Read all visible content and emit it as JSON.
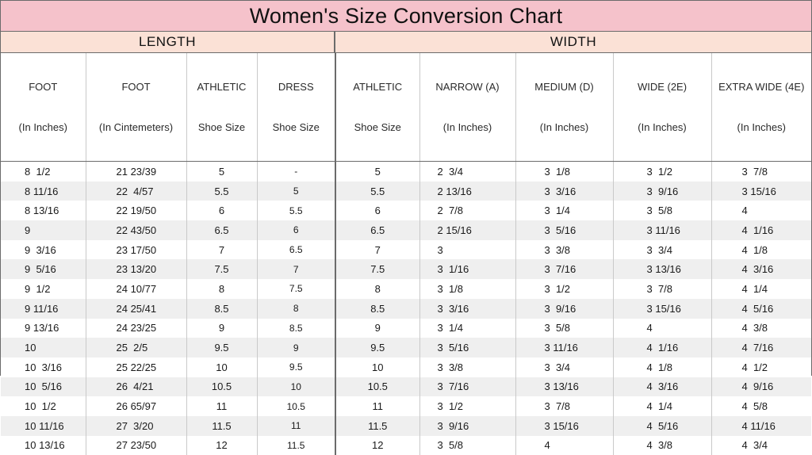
{
  "title": "Women's Size Conversion Chart",
  "groups": {
    "length": "LENGTH",
    "width": "WIDTH"
  },
  "headers": [
    {
      "line1": "FOOT",
      "line2": "(In Inches)"
    },
    {
      "line1": "FOOT",
      "line2": "(In Cintemeters)"
    },
    {
      "line1": "ATHLETIC",
      "line2": "Shoe Size"
    },
    {
      "line1": "DRESS",
      "line2": "Shoe Size"
    },
    {
      "line1": "ATHLETIC",
      "line2": "Shoe Size"
    },
    {
      "line1": "NARROW (A)",
      "line2": "(In Inches)"
    },
    {
      "line1": "MEDIUM (D)",
      "line2": "(In Inches)"
    },
    {
      "line1": "WIDE (2E)",
      "line2": "(In Inches)"
    },
    {
      "line1": "EXTRA WIDE (4E)",
      "line2": "(In Inches)"
    }
  ],
  "rows": [
    [
      "8  1/2",
      "21 23/39",
      "5",
      "-",
      "5",
      "2  3/4",
      "3  1/8",
      "3  1/2",
      "3  7/8"
    ],
    [
      "8 11/16",
      "22  4/57",
      "5.5",
      "5",
      "5.5",
      "2 13/16",
      "3  3/16",
      "3  9/16",
      "3 15/16"
    ],
    [
      "8 13/16",
      "22 19/50",
      "6",
      "5.5",
      "6",
      "2  7/8",
      "3  1/4",
      "3  5/8",
      "4"
    ],
    [
      "9",
      "22 43/50",
      "6.5",
      "6",
      "6.5",
      "2 15/16",
      "3  5/16",
      "3 11/16",
      "4  1/16"
    ],
    [
      "9  3/16",
      "23 17/50",
      "7",
      "6.5",
      "7",
      "3",
      "3  3/8",
      "3  3/4",
      "4  1/8"
    ],
    [
      "9  5/16",
      "23 13/20",
      "7.5",
      "7",
      "7.5",
      "3  1/16",
      "3  7/16",
      "3 13/16",
      "4  3/16"
    ],
    [
      "9  1/2",
      "24 10/77",
      "8",
      "7.5",
      "8",
      "3  1/8",
      "3  1/2",
      "3  7/8",
      "4  1/4"
    ],
    [
      "9 11/16",
      "24 25/41",
      "8.5",
      "8",
      "8.5",
      "3  3/16",
      "3  9/16",
      "3 15/16",
      "4  5/16"
    ],
    [
      "9 13/16",
      "24 23/25",
      "9",
      "8.5",
      "9",
      "3  1/4",
      "3  5/8",
      "4",
      "4  3/8"
    ],
    [
      "10",
      "25  2/5",
      "9.5",
      "9",
      "9.5",
      "3  5/16",
      "3 11/16",
      "4  1/16",
      "4  7/16"
    ],
    [
      "10  3/16",
      "25 22/25",
      "10",
      "9.5",
      "10",
      "3  3/8",
      "3  3/4",
      "4  1/8",
      "4  1/2"
    ],
    [
      "10  5/16",
      "26  4/21",
      "10.5",
      "10",
      "10.5",
      "3  7/16",
      "3 13/16",
      "4  3/16",
      "4  9/16"
    ],
    [
      "10  1/2",
      "26 65/97",
      "11",
      "10.5",
      "11",
      "3  1/2",
      "3  7/8",
      "4  1/4",
      "4  5/8"
    ],
    [
      "10 11/16",
      "27  3/20",
      "11.5",
      "11",
      "11.5",
      "3  9/16",
      "3 15/16",
      "4  5/16",
      "4 11/16"
    ],
    [
      "10 13/16",
      "27 23/50",
      "12",
      "11.5",
      "12",
      "3  5/8",
      "4",
      "4  3/8",
      "4  3/4"
    ]
  ],
  "colors": {
    "title_bg": "#f5c2cb",
    "group_bg": "#fbe1d6",
    "stripe": "#efefef",
    "border": "#6b6b6b"
  }
}
